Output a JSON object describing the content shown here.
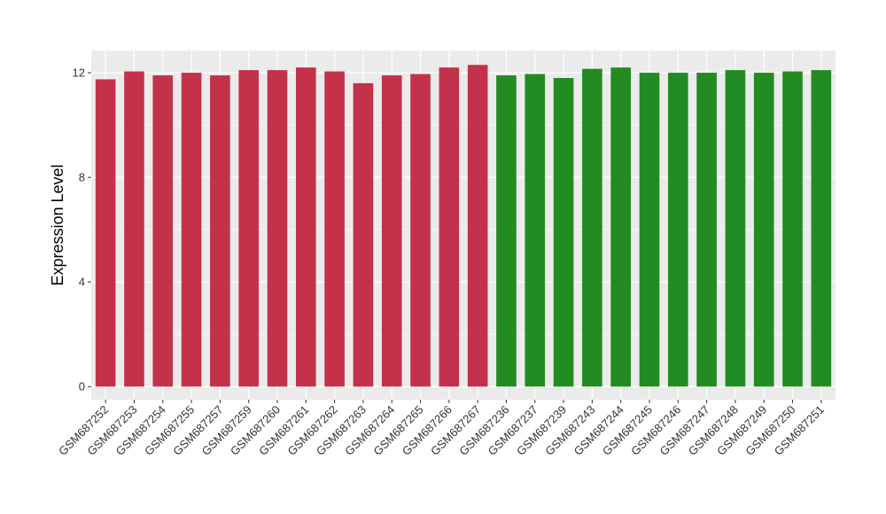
{
  "chart_data": {
    "type": "bar",
    "title": "",
    "xlabel": "",
    "ylabel": "Expression Level",
    "ylim": [
      -0.5,
      12.85
    ],
    "yticks": [
      0,
      4,
      8,
      12
    ],
    "grid": true,
    "background_color": "#ebebeb",
    "grid_color": "#ffffff",
    "categories": [
      "GSM687252",
      "GSM687253",
      "GSM687254",
      "GSM687255",
      "GSM687257",
      "GSM687259",
      "GSM687260",
      "GSM687261",
      "GSM687262",
      "GSM687263",
      "GSM687264",
      "GSM687265",
      "GSM687266",
      "GSM687267",
      "GSM687236",
      "GSM687237",
      "GSM687239",
      "GSM687243",
      "GSM687244",
      "GSM687245",
      "GSM687246",
      "GSM687247",
      "GSM687248",
      "GSM687249",
      "GSM687250",
      "GSM687251"
    ],
    "values": [
      11.75,
      12.05,
      11.9,
      12.0,
      11.9,
      12.1,
      12.1,
      12.2,
      12.05,
      11.6,
      11.9,
      11.95,
      12.2,
      12.3,
      11.9,
      11.95,
      11.8,
      12.15,
      12.2,
      12.0,
      12.0,
      12.0,
      12.1,
      12.0,
      12.05,
      12.1
    ],
    "bar_colors": [
      "#c4314b",
      "#c4314b",
      "#c4314b",
      "#c4314b",
      "#c4314b",
      "#c4314b",
      "#c4314b",
      "#c4314b",
      "#c4314b",
      "#c4314b",
      "#c4314b",
      "#c4314b",
      "#c4314b",
      "#c4314b",
      "#228b22",
      "#228b22",
      "#228b22",
      "#228b22",
      "#228b22",
      "#228b22",
      "#228b22",
      "#228b22",
      "#228b22",
      "#228b22",
      "#228b22",
      "#228b22"
    ]
  }
}
